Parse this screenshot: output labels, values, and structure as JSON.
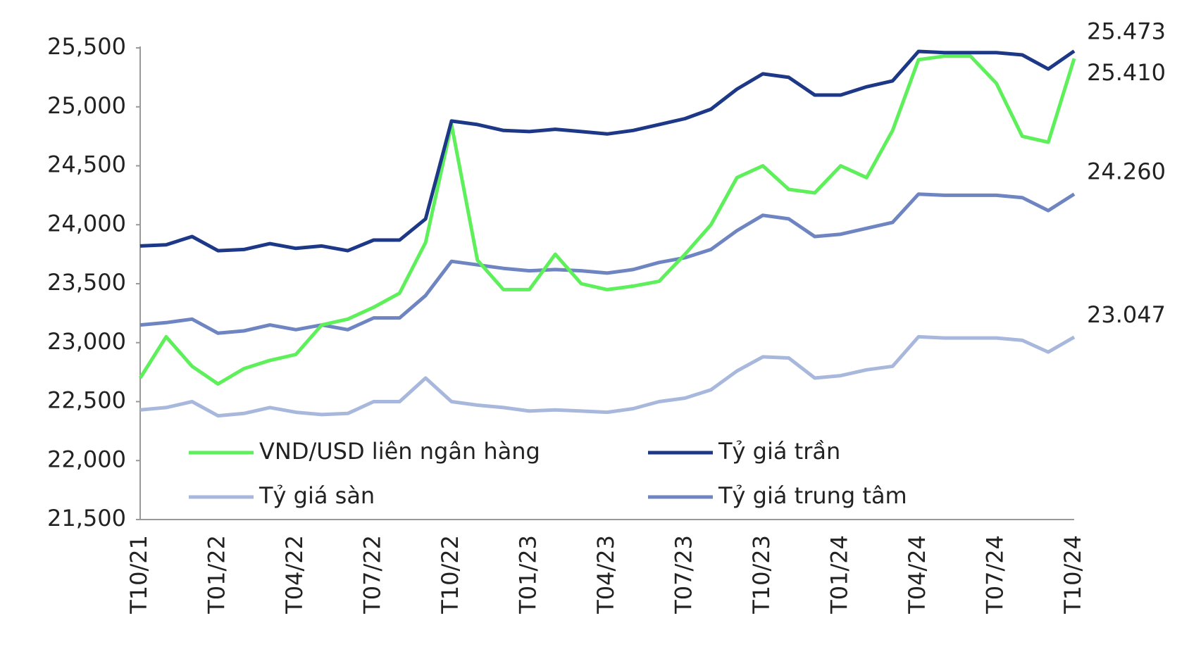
{
  "chart_data": {
    "type": "line",
    "categories": [
      "T10/21",
      null,
      null,
      "T01/22",
      null,
      null,
      "T04/22",
      null,
      null,
      "T07/22",
      null,
      null,
      "T10/22",
      null,
      null,
      "T01/23",
      null,
      null,
      "T04/23",
      null,
      null,
      "T07/23",
      null,
      null,
      "T10/23",
      null,
      null,
      "T01/24",
      null,
      null,
      "T04/24",
      null,
      null,
      "T07/24",
      null,
      null,
      "T10/24"
    ],
    "series": [
      {
        "name": "VND/USD liên ngân hàng",
        "color": "#5ef05a",
        "values": [
          22700,
          23050,
          22800,
          22650,
          22780,
          22850,
          22900,
          23150,
          23200,
          23300,
          23420,
          23850,
          24850,
          23700,
          23450,
          23450,
          23750,
          23500,
          23450,
          23480,
          23520,
          23750,
          24000,
          24400,
          24500,
          24300,
          24270,
          24500,
          24400,
          24800,
          25400,
          25430,
          25430,
          25200,
          24750,
          24700,
          25410
        ],
        "value_labels": [
          null,
          null,
          null,
          null,
          null,
          null,
          null,
          null,
          null,
          null,
          null,
          null,
          null,
          null,
          null,
          null,
          null,
          null,
          null,
          null,
          null,
          null,
          null,
          null,
          null,
          null,
          null,
          null,
          null,
          null,
          null,
          null,
          null,
          null,
          null,
          null,
          "25.410"
        ]
      },
      {
        "name": "Tỷ giá trần",
        "color": "#1c3887",
        "values": [
          23820,
          23830,
          23900,
          23780,
          23790,
          23840,
          23800,
          23820,
          23780,
          23870,
          23870,
          24050,
          24880,
          24850,
          24800,
          24790,
          24810,
          24790,
          24770,
          24800,
          24850,
          24900,
          24980,
          25150,
          25280,
          25250,
          25100,
          25100,
          25170,
          25220,
          25470,
          25460,
          25460,
          25460,
          25440,
          25320,
          25473
        ],
        "value_labels": [
          null,
          null,
          null,
          null,
          null,
          null,
          null,
          null,
          null,
          null,
          null,
          null,
          null,
          null,
          null,
          null,
          null,
          null,
          null,
          null,
          null,
          null,
          null,
          null,
          null,
          null,
          null,
          null,
          null,
          null,
          null,
          null,
          null,
          null,
          null,
          null,
          "25.473"
        ]
      },
      {
        "name": "Tỷ giá sàn",
        "color": "#a8b7dc",
        "values": [
          22430,
          22450,
          22500,
          22380,
          22400,
          22450,
          22410,
          22390,
          22400,
          22500,
          22500,
          22700,
          22500,
          22470,
          22450,
          22420,
          22430,
          22420,
          22410,
          22440,
          22500,
          22530,
          22600,
          22760,
          22880,
          22870,
          22700,
          22720,
          22770,
          22800,
          23050,
          23040,
          23040,
          23040,
          23020,
          22920,
          23047
        ],
        "value_labels": [
          null,
          null,
          null,
          null,
          null,
          null,
          null,
          null,
          null,
          null,
          null,
          null,
          null,
          null,
          null,
          null,
          null,
          null,
          null,
          null,
          null,
          null,
          null,
          null,
          null,
          null,
          null,
          null,
          null,
          null,
          null,
          null,
          null,
          null,
          null,
          null,
          "23.047"
        ]
      },
      {
        "name": "Tỷ giá trung tâm",
        "color": "#6e85c2",
        "values": [
          23150,
          23170,
          23200,
          23080,
          23100,
          23150,
          23110,
          23150,
          23110,
          23210,
          23210,
          23400,
          23690,
          23660,
          23630,
          23610,
          23620,
          23610,
          23590,
          23620,
          23680,
          23720,
          23790,
          23950,
          24080,
          24050,
          23900,
          23920,
          23970,
          24020,
          24260,
          24250,
          24250,
          24250,
          24230,
          24120,
          24260
        ],
        "value_labels": [
          null,
          null,
          null,
          null,
          null,
          null,
          null,
          null,
          null,
          null,
          null,
          null,
          null,
          null,
          null,
          null,
          null,
          null,
          null,
          null,
          null,
          null,
          null,
          null,
          null,
          null,
          null,
          null,
          null,
          null,
          null,
          null,
          null,
          null,
          null,
          null,
          "24.260"
        ]
      }
    ],
    "ylim": [
      21500,
      25500
    ],
    "yticks": [
      {
        "value": 21500,
        "label": "21,500"
      },
      {
        "value": 22000,
        "label": "22,000"
      },
      {
        "value": 22500,
        "label": "22,500"
      },
      {
        "value": 23000,
        "label": "23,000"
      },
      {
        "value": 23500,
        "label": "23,500"
      },
      {
        "value": 24000,
        "label": "24,000"
      },
      {
        "value": 24500,
        "label": "24,500"
      },
      {
        "value": 25000,
        "label": "25,000"
      },
      {
        "value": 25500,
        "label": "25,500"
      }
    ],
    "grid": false,
    "legend": "inside-bottom"
  }
}
